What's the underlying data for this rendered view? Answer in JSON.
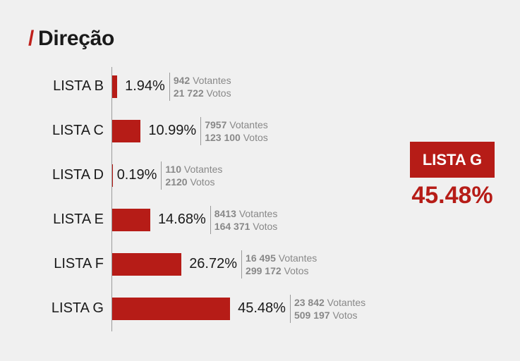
{
  "title_slash": "/",
  "title": "Direção",
  "winner": {
    "label": "LISTA G",
    "pct": "45.48%"
  },
  "chart_data": {
    "type": "bar",
    "orientation": "horizontal",
    "title": "Direção",
    "categories": [
      "LISTA B",
      "LISTA C",
      "LISTA D",
      "LISTA E",
      "LISTA F",
      "LISTA G"
    ],
    "values": [
      1.94,
      10.99,
      0.19,
      14.68,
      26.72,
      45.48
    ],
    "value_labels": [
      "1.94%",
      "10.99%",
      "0.19%",
      "14.68%",
      "26.72%",
      "45.48%"
    ],
    "votantes_num": [
      "942",
      "7957",
      "110",
      "8413",
      "16 495",
      "23 842"
    ],
    "votos_num": [
      "21 722",
      "123 100",
      "2120",
      "164 371",
      "299 172",
      "509 197"
    ],
    "votantes_word": "Votantes",
    "votos_word": "Votos",
    "color": "#b61c17"
  }
}
